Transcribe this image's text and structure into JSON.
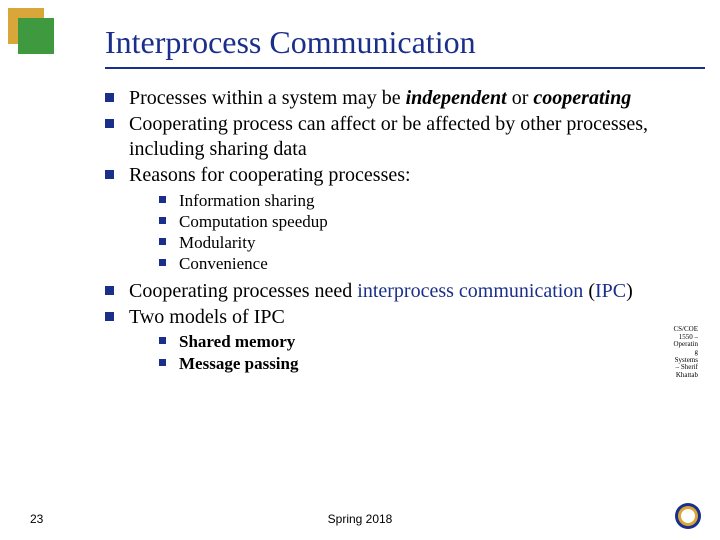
{
  "colors": {
    "title": "#1a2f8a",
    "rule": "#1a2f8a",
    "body": "#000000",
    "bulletL1": "#1a2f8a",
    "bulletL2": "#1a2f8a",
    "deco_gold": "#d9a63a",
    "deco_green": "#3f9a3f",
    "accent": "#1a2f8a",
    "sidetext": "#000000",
    "footer": "#000000"
  },
  "title": "Interprocess Communication",
  "bullets": {
    "b0_pre": "Processes within a system may be ",
    "b0_em1": "independent",
    "b0_mid": " or ",
    "b0_em2": "cooperating",
    "b1": "Cooperating process can affect or be affected by other processes, including sharing data",
    "b2": "Reasons for cooperating processes:",
    "b2_sub": [
      "Information sharing",
      "Computation speedup",
      "Modularity",
      "Convenience"
    ],
    "b3_pre": "Cooperating processes need ",
    "b3_link1": "interprocess communication",
    "b3_mid": " (",
    "b3_link2": "IPC",
    "b3_post": ")",
    "b4": "Two models of IPC",
    "b4_sub": [
      "Shared memory",
      "Message passing"
    ]
  },
  "sidetext": "CS/COE 1550 – Operating Systems – Sherif Khattab",
  "footer": {
    "pagenum": "23",
    "center": "Spring 2018"
  },
  "logo": {
    "outer": "#1a2f8a",
    "ring": "#d9a63a",
    "inner": "#ffffff"
  }
}
